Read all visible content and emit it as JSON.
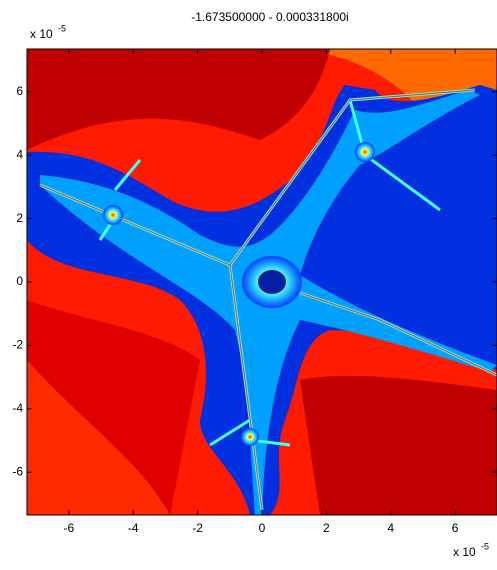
{
  "chart_data": {
    "type": "image",
    "title": "-1.673500000 - 0.000331800i",
    "xlim": [
      -7.3,
      7.3
    ],
    "ylim": [
      -7.35,
      7.35
    ],
    "xticks": [
      -6,
      -4,
      -2,
      0,
      2,
      4,
      6
    ],
    "yticks": [
      -6,
      -4,
      -2,
      0,
      2,
      4,
      6
    ],
    "x_multiplier": {
      "base": "x 10",
      "exponent": "-5"
    },
    "y_multiplier": {
      "base": "x 10",
      "exponent": "-5"
    }
  }
}
